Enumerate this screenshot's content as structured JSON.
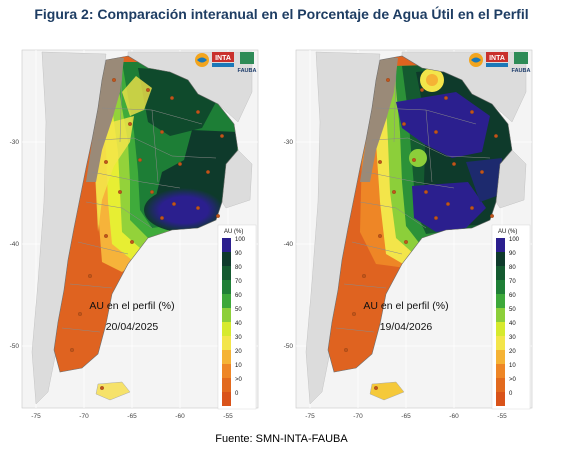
{
  "figure": {
    "title": "Figura 2: Comparación interanual en el Porcentaje de Agua Útil en el Perfil",
    "source_caption": "Fuente: SMN-INTA-FAUBA"
  },
  "logos": {
    "inta_label": "INTA",
    "fauba_label": "FAUBA"
  },
  "colorbar": {
    "title": "AU (%)",
    "ticks": [
      "100",
      "90",
      "80",
      "70",
      "60",
      "50",
      "40",
      "30",
      "20",
      "10",
      ">0",
      "0"
    ],
    "colors": [
      "#2b1f8e",
      "#0e3a2b",
      "#145a30",
      "#1f7f36",
      "#3da83a",
      "#8ccf3a",
      "#d6ea2e",
      "#f3e54a",
      "#f5b335",
      "#ee8626",
      "#e26a1e",
      "#d9531a"
    ]
  },
  "axes": {
    "x_ticks": [
      "-75",
      "-70",
      "-65",
      "-60",
      "-55"
    ],
    "y_ticks": [
      "-30",
      "-40",
      "-50"
    ]
  },
  "panels": [
    {
      "id": "left",
      "label": "AU en el perfil (%)",
      "date": "20/04/2025"
    },
    {
      "id": "right",
      "label": "AU en el perfil (%)",
      "date": "19/04/2026"
    }
  ]
}
